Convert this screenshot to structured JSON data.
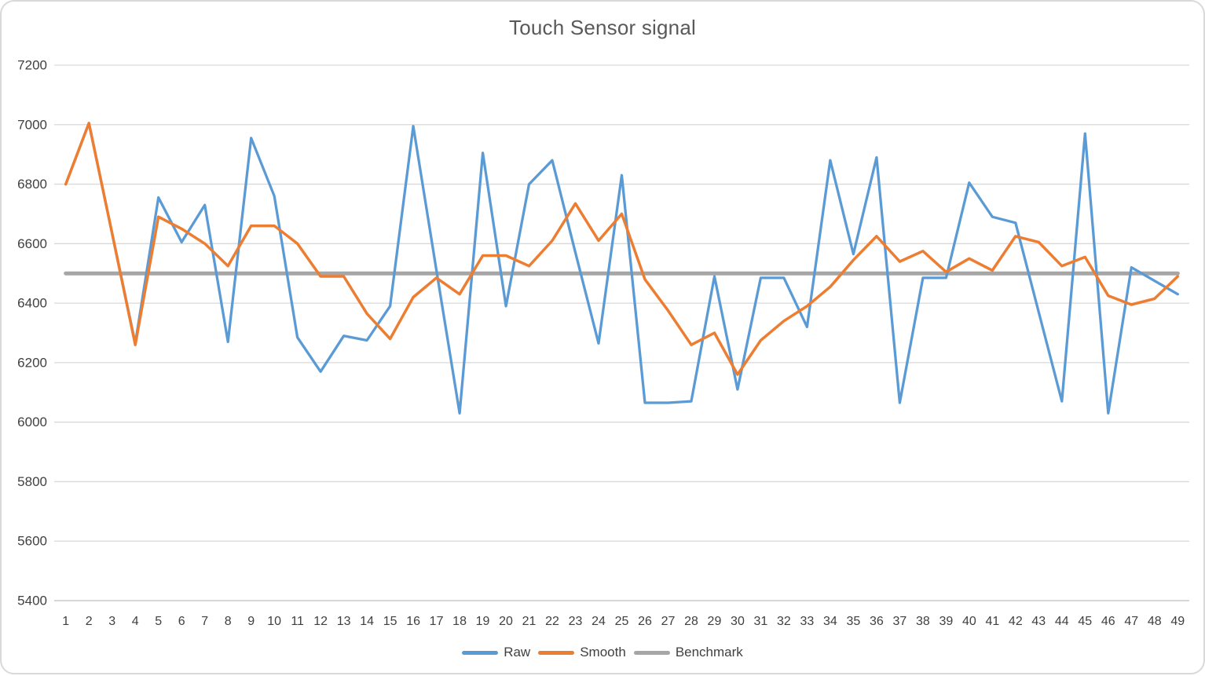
{
  "chart_data": {
    "type": "line",
    "title": "Touch Sensor signal",
    "x": [
      1,
      2,
      3,
      4,
      5,
      6,
      7,
      8,
      9,
      10,
      11,
      12,
      13,
      14,
      15,
      16,
      17,
      18,
      19,
      20,
      21,
      22,
      23,
      24,
      25,
      26,
      27,
      28,
      29,
      30,
      31,
      32,
      33,
      34,
      35,
      36,
      37,
      38,
      39,
      40,
      41,
      42,
      43,
      44,
      45,
      46,
      47,
      48,
      49
    ],
    "series": [
      {
        "name": "Raw",
        "color": "#5B9BD5",
        "width": 3.3,
        "values": [
          6800,
          7005,
          6635,
          6265,
          6755,
          6605,
          6730,
          6270,
          6955,
          6760,
          6285,
          6170,
          6290,
          6275,
          6390,
          6995,
          6510,
          6030,
          6905,
          6390,
          6800,
          6880,
          6570,
          6265,
          6830,
          6065,
          6065,
          6070,
          6490,
          6110,
          6485,
          6485,
          6320,
          6880,
          6565,
          6890,
          6065,
          6485,
          6485,
          6805,
          6690,
          6670,
          6370,
          6070,
          6970,
          6030,
          6520,
          6475,
          6430
        ]
      },
      {
        "name": "Smooth",
        "color": "#ED7D31",
        "width": 3.5,
        "values": [
          6800,
          7005,
          6635,
          6260,
          6690,
          6650,
          6600,
          6525,
          6660,
          6660,
          6600,
          6490,
          6490,
          6365,
          6280,
          6420,
          6485,
          6430,
          6560,
          6560,
          6525,
          6610,
          6735,
          6610,
          6700,
          6480,
          6375,
          6260,
          6300,
          6160,
          6275,
          6340,
          6390,
          6455,
          6545,
          6625,
          6540,
          6575,
          6505,
          6550,
          6510,
          6625,
          6605,
          6525,
          6555,
          6425,
          6395,
          6415,
          6490
        ]
      },
      {
        "name": "Benchmark",
        "color": "#A6A6A6",
        "width": 5,
        "constant": 6500
      }
    ],
    "ylim": [
      5400,
      7200
    ],
    "yticks": [
      5400,
      5600,
      5800,
      6000,
      6200,
      6400,
      6600,
      6800,
      7000,
      7200
    ],
    "xlabel": "",
    "ylabel": "",
    "grid": "horizontal",
    "legend_position": "bottom",
    "colors": {
      "gridline": "#d9d9d9",
      "axis_line": "#bfbfbf",
      "tick_text": "#404040",
      "title_text": "#595959"
    }
  }
}
